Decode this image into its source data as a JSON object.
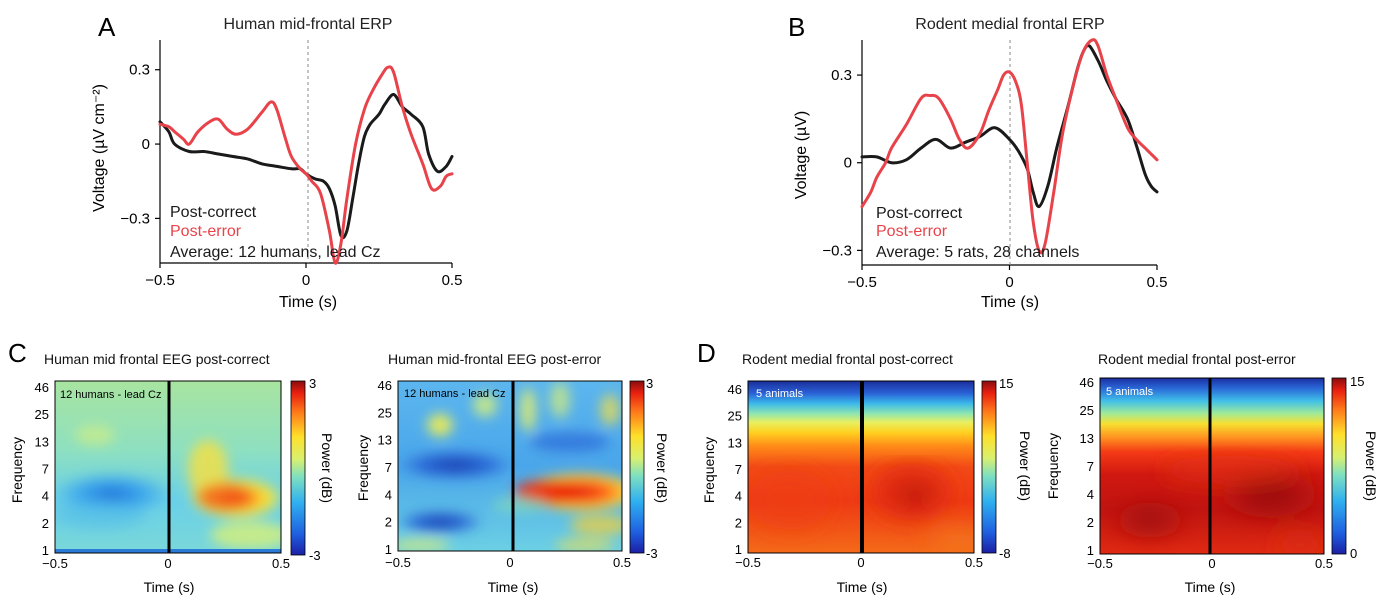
{
  "chart_data": [
    {
      "type": "line",
      "panel_label": "A",
      "title": "Human mid-frontal ERP",
      "xlabel": "Time (s)",
      "ylabel": "Voltage (µV cm⁻²)",
      "xlim": [
        -0.5,
        0.5
      ],
      "ylim": [
        -0.48,
        0.42
      ],
      "xticks": [
        "-0.5",
        "0",
        "0.5"
      ],
      "xtick_values": [
        -0.5,
        0,
        0.5
      ],
      "yticks": [
        "0.3",
        "0",
        "-0.3"
      ],
      "ytick_values": [
        0.3,
        0,
        -0.3
      ],
      "legend": [
        "Post-correct",
        "Post-error"
      ],
      "annotation": "Average: 12 humans, lead Cz",
      "series": [
        {
          "name": "Post-correct",
          "color": "#1a1a1a",
          "x": [
            -0.5,
            -0.47,
            -0.45,
            -0.4,
            -0.35,
            -0.3,
            -0.25,
            -0.2,
            -0.15,
            -0.1,
            -0.05,
            -0.02,
            0,
            0.03,
            0.06,
            0.08,
            0.1,
            0.12,
            0.14,
            0.16,
            0.18,
            0.2,
            0.22,
            0.25,
            0.27,
            0.3,
            0.33,
            0.36,
            0.4,
            0.42,
            0.45,
            0.48,
            0.5
          ],
          "y": [
            0.09,
            0.05,
            0,
            -0.03,
            -0.03,
            -0.04,
            -0.05,
            -0.06,
            -0.08,
            -0.09,
            -0.1,
            -0.1,
            -0.12,
            -0.14,
            -0.15,
            -0.18,
            -0.25,
            -0.37,
            -0.35,
            -0.22,
            -0.08,
            0.03,
            0.08,
            0.12,
            0.16,
            0.2,
            0.15,
            0.12,
            0.07,
            -0.04,
            -0.11,
            -0.09,
            -0.05
          ]
        },
        {
          "name": "Post-error",
          "color": "#e8434a",
          "x": [
            -0.5,
            -0.47,
            -0.45,
            -0.42,
            -0.4,
            -0.37,
            -0.33,
            -0.3,
            -0.27,
            -0.24,
            -0.2,
            -0.15,
            -0.12,
            -0.1,
            -0.07,
            -0.05,
            -0.02,
            0,
            0.02,
            0.05,
            0.08,
            0.1,
            0.12,
            0.14,
            0.17,
            0.2,
            0.23,
            0.26,
            0.28,
            0.3,
            0.33,
            0.36,
            0.4,
            0.43,
            0.46,
            0.48,
            0.5
          ],
          "y": [
            0.08,
            0.07,
            0.05,
            0.02,
            0,
            0.05,
            0.09,
            0.1,
            0.06,
            0.04,
            0.06,
            0.13,
            0.17,
            0.14,
            0.02,
            -0.05,
            -0.1,
            -0.12,
            -0.15,
            -0.2,
            -0.35,
            -0.48,
            -0.4,
            -0.22,
            0,
            0.14,
            0.22,
            0.28,
            0.31,
            0.29,
            0.15,
            0.04,
            -0.08,
            -0.18,
            -0.17,
            -0.13,
            -0.12
          ]
        }
      ]
    },
    {
      "type": "line",
      "panel_label": "B",
      "title": "Rodent medial frontal ERP",
      "xlabel": "Time (s)",
      "ylabel": "Voltage (µV)",
      "xlim": [
        -0.5,
        0.5
      ],
      "ylim": [
        -0.35,
        0.42
      ],
      "xticks": [
        "-0.5",
        "0",
        "0.5"
      ],
      "xtick_values": [
        -0.5,
        0,
        0.5
      ],
      "yticks": [
        "0.3",
        "0",
        "-0.3"
      ],
      "ytick_values": [
        0.3,
        0,
        -0.3
      ],
      "legend": [
        "Post-correct",
        "Post-error"
      ],
      "annotation": "Average: 5 rats, 28 channels",
      "series": [
        {
          "name": "Post-correct",
          "color": "#1a1a1a",
          "x": [
            -0.5,
            -0.45,
            -0.4,
            -0.35,
            -0.3,
            -0.25,
            -0.2,
            -0.15,
            -0.1,
            -0.05,
            0,
            0.03,
            0.06,
            0.08,
            0.1,
            0.13,
            0.16,
            0.2,
            0.23,
            0.25,
            0.27,
            0.3,
            0.33,
            0.36,
            0.4,
            0.43,
            0.46,
            0.48,
            0.5
          ],
          "y": [
            0.02,
            0.02,
            0,
            0.01,
            0.05,
            0.08,
            0.05,
            0.07,
            0.09,
            0.12,
            0.08,
            0.04,
            -0.02,
            -0.1,
            -0.15,
            -0.08,
            0.05,
            0.2,
            0.32,
            0.38,
            0.4,
            0.35,
            0.28,
            0.22,
            0.15,
            0.06,
            -0.04,
            -0.08,
            -0.1
          ]
        },
        {
          "name": "Post-error",
          "color": "#e8434a",
          "x": [
            -0.5,
            -0.47,
            -0.45,
            -0.42,
            -0.4,
            -0.35,
            -0.3,
            -0.27,
            -0.24,
            -0.2,
            -0.17,
            -0.14,
            -0.1,
            -0.07,
            -0.04,
            -0.02,
            0,
            0.02,
            0.04,
            0.06,
            0.08,
            0.1,
            0.12,
            0.15,
            0.18,
            0.22,
            0.25,
            0.28,
            0.3,
            0.33,
            0.36,
            0.4,
            0.43,
            0.46,
            0.48,
            0.5
          ],
          "y": [
            -0.15,
            -0.1,
            -0.05,
            0,
            0.05,
            0.13,
            0.22,
            0.23,
            0.22,
            0.15,
            0.08,
            0.05,
            0.1,
            0.18,
            0.25,
            0.3,
            0.31,
            0.28,
            0.2,
            0,
            -0.2,
            -0.3,
            -0.28,
            -0.1,
            0.1,
            0.28,
            0.38,
            0.42,
            0.4,
            0.3,
            0.22,
            0.12,
            0.08,
            0.05,
            0.03,
            0.01
          ]
        }
      ]
    },
    {
      "type": "heatmap",
      "panel_label": "C",
      "title": "Human mid frontal EEG post-correct",
      "note": "12 humans - lead Cz",
      "xlabel": "Time (s)",
      "ylabel": "Frequency",
      "xticks": [
        "-0.5",
        "0",
        "0.5"
      ],
      "yticks": [
        "46",
        "25",
        "13",
        "7",
        "4",
        "2",
        "1"
      ],
      "colorbar_label": "Power (dB)",
      "colorbar_ticks": [
        "3",
        "-3"
      ],
      "clim": [
        -3,
        3
      ]
    },
    {
      "type": "heatmap",
      "title": "Human mid-frontal EEG post-error",
      "note": "12 humans - lead Cz",
      "xlabel": "Time (s)",
      "ylabel": "Frequency",
      "xticks": [
        "-0.5",
        "0",
        "0.5"
      ],
      "yticks": [
        "46",
        "25",
        "13",
        "7",
        "4",
        "2",
        "1"
      ],
      "colorbar_label": "Power (dB)",
      "colorbar_ticks": [
        "3",
        "-3"
      ],
      "clim": [
        -3,
        3
      ]
    },
    {
      "type": "heatmap",
      "panel_label": "D",
      "title": "Rodent medial frontal post-correct",
      "note": "5 animals",
      "xlabel": "Time (s)",
      "ylabel": "Frequency",
      "xticks": [
        "-0.5",
        "0",
        "0.5"
      ],
      "yticks": [
        "46",
        "25",
        "13",
        "7",
        "4",
        "2",
        "1"
      ],
      "colorbar_label": "Power (dB)",
      "colorbar_ticks": [
        "15",
        "-8"
      ],
      "clim": [
        -8,
        15
      ]
    },
    {
      "type": "heatmap",
      "title": "Rodent medial frontal post-error",
      "note": "5 animals",
      "xlabel": "Time (s)",
      "ylabel": "Frequency",
      "xticks": [
        "-0.5",
        "0",
        "0.5"
      ],
      "yticks": [
        "46",
        "25",
        "13",
        "7",
        "4",
        "2",
        "1"
      ],
      "colorbar_label": "Power (dB)",
      "colorbar_ticks": [
        "15",
        "0"
      ],
      "clim": [
        0,
        15
      ]
    }
  ]
}
